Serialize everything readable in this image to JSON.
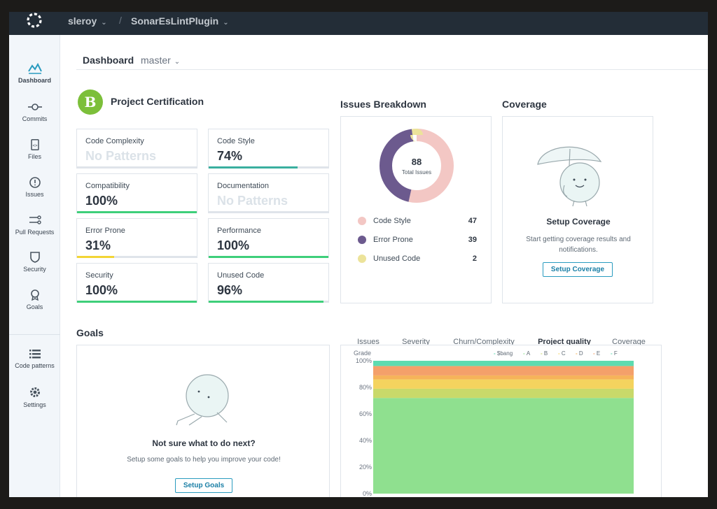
{
  "topbar": {
    "user": "sleroy",
    "project": "SonarEsLintPlugin",
    "separator": "/"
  },
  "sidebar": {
    "items": [
      {
        "label": "Dashboard",
        "icon": "dashboard-icon",
        "active": true
      },
      {
        "label": "Commits",
        "icon": "commit-icon"
      },
      {
        "label": "Files",
        "icon": "file-icon"
      },
      {
        "label": "Issues",
        "icon": "alert-icon"
      },
      {
        "label": "Pull Requests",
        "icon": "pull-request-icon"
      },
      {
        "label": "Security",
        "icon": "shield-icon"
      },
      {
        "label": "Goals",
        "icon": "goal-icon"
      },
      {
        "label": "Code patterns",
        "icon": "list-icon"
      },
      {
        "label": "Settings",
        "icon": "gear-icon"
      }
    ]
  },
  "header": {
    "title": "Dashboard",
    "branch": "master"
  },
  "certification": {
    "grade": "B",
    "grade_color": "#7cbf3a",
    "title": "Project Certification",
    "cards": [
      {
        "label": "Code Complexity",
        "value": "No Patterns",
        "muted": true,
        "progress": 0,
        "color": "#dfe4ea"
      },
      {
        "label": "Code Style",
        "value": "74%",
        "progress": 0.74,
        "color": "#3aaf9f"
      },
      {
        "label": "Compatibility",
        "value": "100%",
        "progress": 1.0,
        "color": "#3ecf7a"
      },
      {
        "label": "Documentation",
        "value": "No Patterns",
        "muted": true,
        "progress": 0,
        "color": "#dfe4ea"
      },
      {
        "label": "Error Prone",
        "value": "31%",
        "progress": 0.31,
        "color": "#f2d535"
      },
      {
        "label": "Performance",
        "value": "100%",
        "progress": 1.0,
        "color": "#3ecf7a"
      },
      {
        "label": "Security",
        "value": "100%",
        "progress": 1.0,
        "color": "#3ecf7a"
      },
      {
        "label": "Unused Code",
        "value": "96%",
        "progress": 0.96,
        "color": "#3ecf7a"
      }
    ]
  },
  "issues_breakdown": {
    "title": "Issues Breakdown",
    "total": "88",
    "total_label": "Total Issues",
    "items": [
      {
        "label": "Code Style",
        "value": 47,
        "color": "#f3c7c4"
      },
      {
        "label": "Error Prone",
        "value": 39,
        "color": "#6c5a8e"
      },
      {
        "label": "Unused Code",
        "value": 2,
        "color": "#ece39a"
      }
    ]
  },
  "coverage": {
    "title": "Coverage",
    "heading": "Setup Coverage",
    "text": "Start getting coverage results and notifications.",
    "button": "Setup Coverage"
  },
  "goals": {
    "title": "Goals",
    "heading": "Not sure what to do next?",
    "text": "Setup some goals to help you improve your code!",
    "button": "Setup Goals"
  },
  "chart_tabs": [
    "Issues",
    "Severity",
    "Churn/Complexity",
    "Project quality",
    "Coverage"
  ],
  "chart_tabs_active": 3,
  "chart_data": {
    "type": "area",
    "ylabel": "Grade",
    "ylim": [
      0,
      100
    ],
    "yticks": [
      "0%",
      "20%",
      "40%",
      "60%",
      "80%",
      "100%"
    ],
    "legend_position": "top-right",
    "series": [
      {
        "name": "$bang",
        "color": "#5ddbb0",
        "from": 96,
        "to": 100
      },
      {
        "name": "A",
        "color": "#8fe08f",
        "from": 0,
        "to": 72
      },
      {
        "name": "B",
        "color": "#c9d96a",
        "from": 72,
        "to": 79
      },
      {
        "name": "C",
        "color": "#f4d35e",
        "from": 79,
        "to": 86
      },
      {
        "name": "D",
        "color": "#f6b35a",
        "from": 86,
        "to": 89
      },
      {
        "name": "E",
        "color": "#f4a06a",
        "from": 89,
        "to": 96
      },
      {
        "name": "F",
        "color": "#5ddbb0",
        "from": 100,
        "to": 100
      }
    ]
  }
}
